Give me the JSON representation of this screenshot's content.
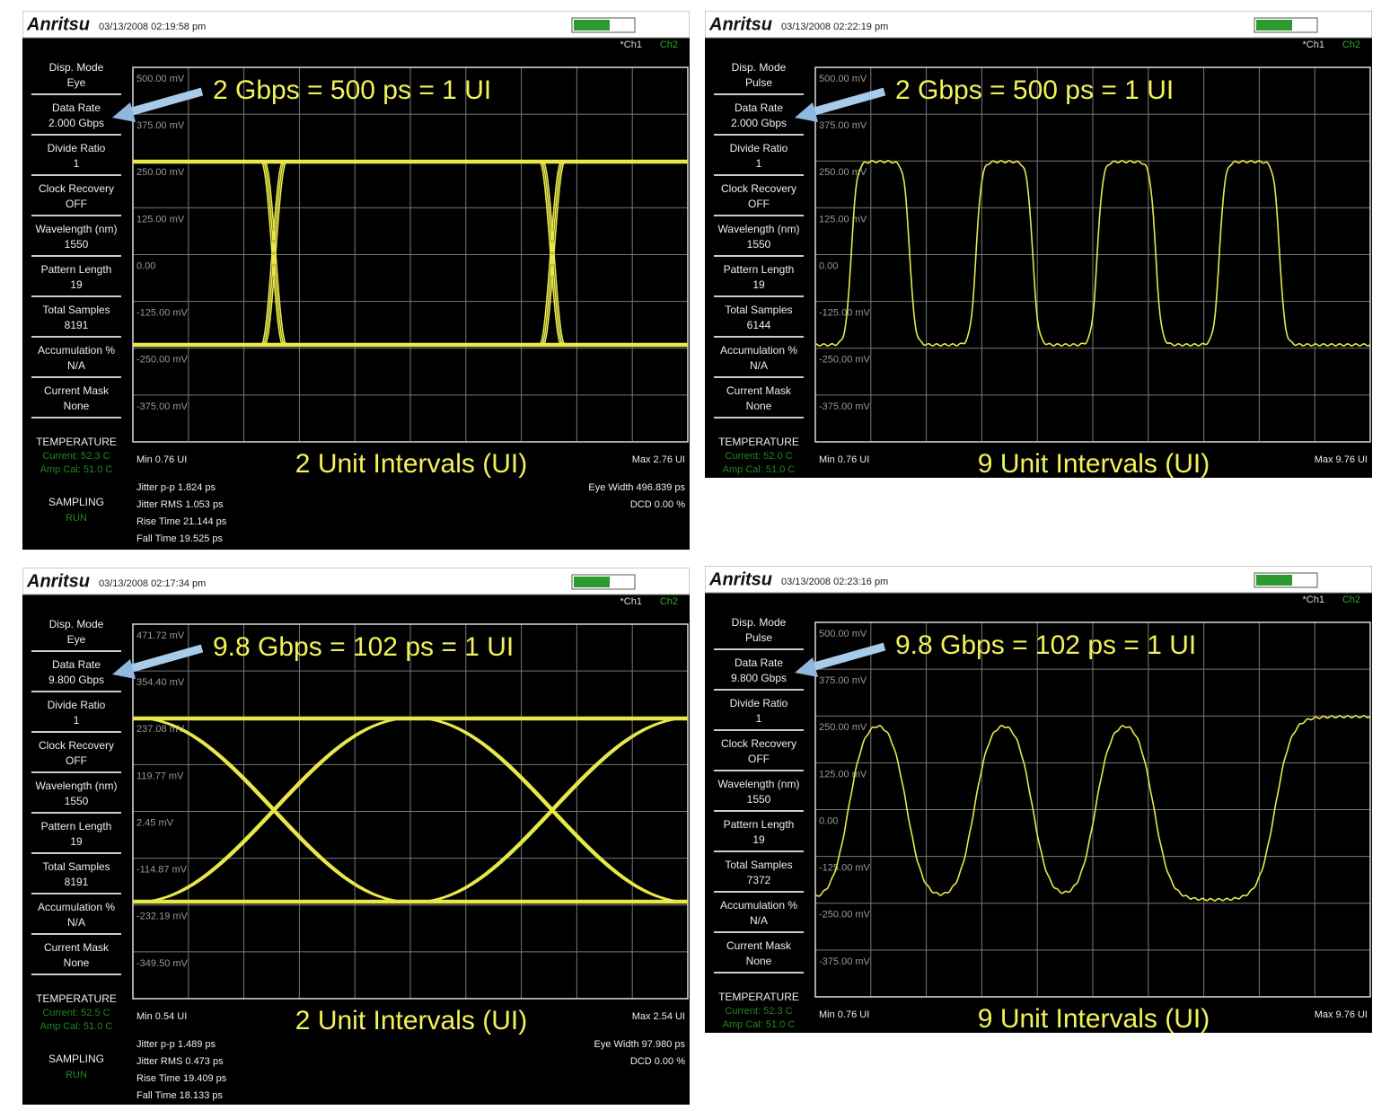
{
  "panels": [
    {
      "logo": "Anritsu",
      "timestamp": "03/13/2008 02:19:58 pm",
      "channels": [
        "*Ch1",
        "Ch2"
      ],
      "settings": [
        {
          "label": "Disp. Mode",
          "value": "Eye"
        },
        {
          "label": "Data Rate",
          "value": "2.000 Gbps"
        },
        {
          "label": "Divide Ratio",
          "value": "1"
        },
        {
          "label": "Clock Recovery",
          "value": "OFF"
        },
        {
          "label": "Wavelength (nm)",
          "value": "1550"
        },
        {
          "label": "Pattern Length",
          "value": "19"
        },
        {
          "label": "Total Samples",
          "value": "8191"
        },
        {
          "label": "Accumulation %",
          "value": "N/A"
        },
        {
          "label": "Current Mask",
          "value": "None"
        }
      ],
      "temperature": {
        "label": "TEMPERATURE",
        "current": "Current: 52.3 C",
        "amp_cal": "Amp Cal: 51.0 C"
      },
      "sampling": {
        "label": "SAMPLING",
        "value": "RUN"
      },
      "y_labels": [
        "500.00 mV",
        "375.00 mV",
        "250.00 mV",
        "125.00 mV",
        "0.00",
        "-125.00 mV",
        "-250.00 mV",
        "-375.00 mV"
      ],
      "annotation": "2 Gbps = 500 ps = 1 UI",
      "x_caption": "2 Unit Intervals (UI)",
      "min": "Min 0.76 UI",
      "max": "Max 2.76 UI",
      "stats_left": [
        "Jitter p-p 1.824 ps",
        "Jitter RMS 1.053 ps",
        "Rise Time 21.144 ps",
        "Fall Time 19.525 ps"
      ],
      "stats_right": [
        "Eye Width 496.839 ps",
        "DCD 0.00 %"
      ]
    },
    {
      "logo": "Anritsu",
      "timestamp": "03/13/2008 02:22:19 pm",
      "channels": [
        "*Ch1",
        "Ch2"
      ],
      "settings": [
        {
          "label": "Disp. Mode",
          "value": "Pulse"
        },
        {
          "label": "Data Rate",
          "value": "2.000 Gbps"
        },
        {
          "label": "Divide Ratio",
          "value": "1"
        },
        {
          "label": "Clock Recovery",
          "value": "OFF"
        },
        {
          "label": "Wavelength (nm)",
          "value": "1550"
        },
        {
          "label": "Pattern Length",
          "value": "19"
        },
        {
          "label": "Total Samples",
          "value": "6144"
        },
        {
          "label": "Accumulation %",
          "value": "N/A"
        },
        {
          "label": "Current Mask",
          "value": "None"
        }
      ],
      "temperature": {
        "label": "TEMPERATURE",
        "current": "Current: 52.0 C",
        "amp_cal": "Amp Cal: 51.0 C"
      },
      "y_labels": [
        "500.00 mV",
        "375.00 mV",
        "250.00 mV",
        "125.00 mV",
        "0.00",
        "-125.00 mV",
        "-250.00 mV",
        "-375.00 mV"
      ],
      "annotation": "2 Gbps = 500 ps = 1 UI",
      "x_caption": "9 Unit Intervals (UI)",
      "min": "Min 0.76 UI",
      "max": "Max 9.76 UI"
    },
    {
      "logo": "Anritsu",
      "timestamp": "03/13/2008 02:17:34 pm",
      "channels": [
        "*Ch1",
        "Ch2"
      ],
      "settings": [
        {
          "label": "Disp. Mode",
          "value": "Eye"
        },
        {
          "label": "Data Rate",
          "value": "9.800 Gbps"
        },
        {
          "label": "Divide Ratio",
          "value": "1"
        },
        {
          "label": "Clock Recovery",
          "value": "OFF"
        },
        {
          "label": "Wavelength (nm)",
          "value": "1550"
        },
        {
          "label": "Pattern Length",
          "value": "19"
        },
        {
          "label": "Total Samples",
          "value": "8191"
        },
        {
          "label": "Accumulation %",
          "value": "N/A"
        },
        {
          "label": "Current Mask",
          "value": "None"
        }
      ],
      "temperature": {
        "label": "TEMPERATURE",
        "current": "Current: 52.5 C",
        "amp_cal": "Amp Cal: 51.0 C"
      },
      "sampling": {
        "label": "SAMPLING",
        "value": "RUN"
      },
      "y_labels": [
        "471.72 mV",
        "354.40 mV",
        "237.08 mV",
        "119.77 mV",
        "2.45 mV",
        "-114.87 mV",
        "-232.19 mV",
        "-349.50 mV"
      ],
      "annotation": "9.8 Gbps = 102 ps = 1 UI",
      "x_caption": "2 Unit Intervals (UI)",
      "min": "Min 0.54 UI",
      "max": "Max 2.54 UI",
      "stats_left": [
        "Jitter p-p 1.489 ps",
        "Jitter RMS 0.473 ps",
        "Rise Time 19.409 ps",
        "Fall Time 18.133 ps"
      ],
      "stats_right": [
        "Eye Width 97.980 ps",
        "DCD 0.00 %"
      ]
    },
    {
      "logo": "Anritsu",
      "timestamp": "03/13/2008 02:23:16 pm",
      "channels": [
        "*Ch1",
        "Ch2"
      ],
      "settings": [
        {
          "label": "Disp. Mode",
          "value": "Pulse"
        },
        {
          "label": "Data Rate",
          "value": "9.800 Gbps"
        },
        {
          "label": "Divide Ratio",
          "value": "1"
        },
        {
          "label": "Clock Recovery",
          "value": "OFF"
        },
        {
          "label": "Wavelength (nm)",
          "value": "1550"
        },
        {
          "label": "Pattern Length",
          "value": "19"
        },
        {
          "label": "Total Samples",
          "value": "7372"
        },
        {
          "label": "Accumulation %",
          "value": "N/A"
        },
        {
          "label": "Current Mask",
          "value": "None"
        }
      ],
      "temperature": {
        "label": "TEMPERATURE",
        "current": "Current: 52.3 C",
        "amp_cal": "Amp Cal: 51.0 C"
      },
      "y_labels": [
        "500.00 mV",
        "375.00 mV",
        "250.00 mV",
        "125.00 mV",
        "0.00",
        "-125.00 mV",
        "-250.00 mV",
        "-375.00 mV"
      ],
      "annotation": "9.8 Gbps = 102 ps = 1 UI",
      "x_caption": "9 Unit Intervals (UI)",
      "min": "Min 0.76 UI",
      "max": "Max 9.76 UI"
    }
  ]
}
